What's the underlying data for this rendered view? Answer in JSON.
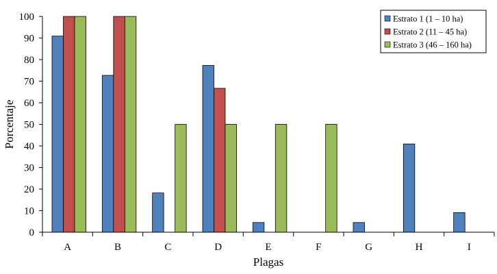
{
  "chart_data": {
    "type": "bar",
    "xlabel": "Plagas",
    "ylabel": "Porcentaje",
    "ylim": [
      0,
      100
    ],
    "yticks": [
      0,
      10,
      20,
      30,
      40,
      50,
      60,
      70,
      80,
      90,
      100
    ],
    "categories": [
      "A",
      "B",
      "C",
      "D",
      "E",
      "F",
      "G",
      "H",
      "I"
    ],
    "series": [
      {
        "name": "Estrato 1 (1 – 10 ha)",
        "color": "#4F81BD",
        "values": [
          90.9,
          72.7,
          18.2,
          77.3,
          4.5,
          0,
          4.5,
          40.9,
          9.1
        ]
      },
      {
        "name": "Estrato 2 (11 – 45 ha)",
        "color": "#C0504D",
        "values": [
          100,
          100,
          0,
          66.7,
          0,
          0,
          0,
          0,
          0
        ]
      },
      {
        "name": "Estrato 3 (46 – 160 ha)",
        "color": "#9BBB59",
        "values": [
          100,
          100,
          50,
          50,
          50,
          50,
          0,
          0,
          0
        ]
      }
    ],
    "grid": false,
    "legend_position": "top-right"
  }
}
